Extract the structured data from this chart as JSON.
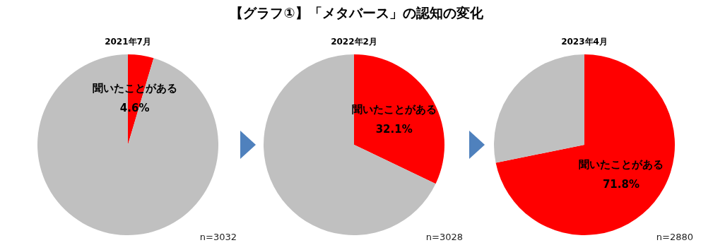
{
  "chart_data": [
    {
      "type": "other",
      "title": "【グラフ①】「メタバース」の認知の変化"
    },
    {
      "type": "pie",
      "title": "2021年7月",
      "categories": [
        "聞いたことがある",
        null
      ],
      "values": [
        4.6,
        95.4
      ],
      "colors": [
        "#ff0000",
        "#c0c0c0"
      ],
      "value_labels": [
        "4.6%",
        null
      ],
      "annotations": [
        "n=3032"
      ]
    },
    {
      "type": "pie",
      "title": "2022年2月",
      "categories": [
        "聞いたことがある",
        null
      ],
      "values": [
        32.1,
        67.9
      ],
      "colors": [
        "#ff0000",
        "#c0c0c0"
      ],
      "value_labels": [
        "32.1%",
        null
      ],
      "annotations": [
        "n=3028"
      ]
    },
    {
      "type": "pie",
      "title": "2023年4月",
      "categories": [
        "聞いたことがある",
        null
      ],
      "values": [
        71.8,
        28.2
      ],
      "colors": [
        "#ff0000",
        "#c0c0c0"
      ],
      "value_labels": [
        "71.8%",
        null
      ],
      "annotations": [
        "n=2880"
      ]
    }
  ]
}
